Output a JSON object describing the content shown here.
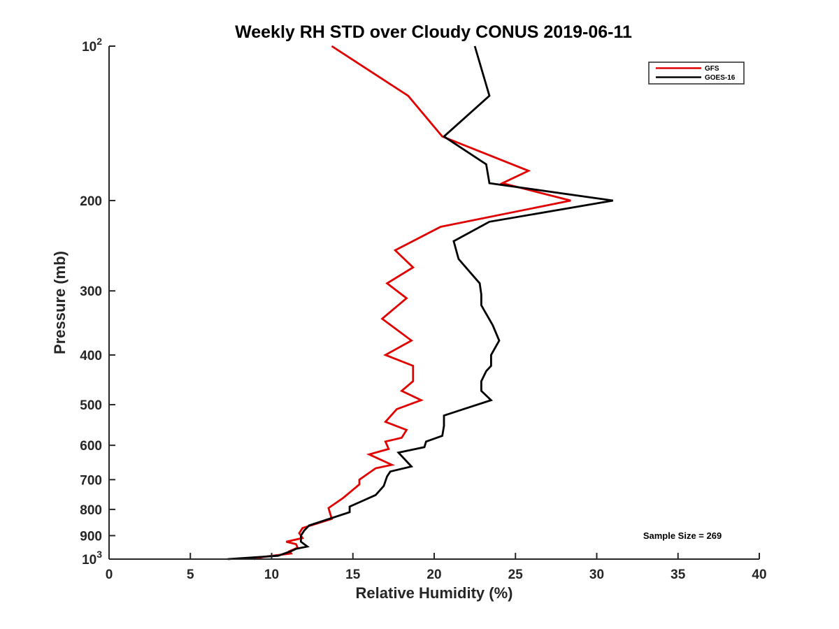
{
  "chart_data": {
    "type": "line",
    "title": "Weekly RH STD over Cloudy CONUS 2019-06-11",
    "xlabel": "Relative Humidity (%)",
    "ylabel": "Pressure (mb)",
    "xlim": [
      0,
      40
    ],
    "ylim": [
      100,
      1000
    ],
    "y_scale": "log",
    "y_reversed": true,
    "grid": false,
    "legend_position": "top-right",
    "x_ticks": [
      "0",
      "5",
      "10",
      "15",
      "20",
      "25",
      "30",
      "35",
      "40"
    ],
    "y_ticks": [
      {
        "value": 100,
        "base": "10",
        "exp": "2",
        "label": ""
      },
      {
        "value": 200,
        "label": "200"
      },
      {
        "value": 300,
        "label": "300"
      },
      {
        "value": 400,
        "label": "400"
      },
      {
        "value": 500,
        "label": "500"
      },
      {
        "value": 600,
        "label": "600"
      },
      {
        "value": 700,
        "label": "700"
      },
      {
        "value": 800,
        "label": "800"
      },
      {
        "value": 900,
        "label": "900"
      },
      {
        "value": 1000,
        "base": "10",
        "exp": "3",
        "label": ""
      }
    ],
    "series": [
      {
        "name": "GFS",
        "color": "#e00000",
        "points": [
          [
            13.7,
            100
          ],
          [
            18.4,
            125
          ],
          [
            20.5,
            150
          ],
          [
            25.8,
            175
          ],
          [
            24.2,
            185
          ],
          [
            28.4,
            200
          ],
          [
            20.4,
            225
          ],
          [
            17.6,
            250
          ],
          [
            18.7,
            270
          ],
          [
            17.1,
            290
          ],
          [
            18.3,
            310
          ],
          [
            16.8,
            340
          ],
          [
            18.6,
            375
          ],
          [
            17.0,
            400
          ],
          [
            18.7,
            420
          ],
          [
            18.7,
            450
          ],
          [
            18.0,
            470
          ],
          [
            19.2,
            490
          ],
          [
            17.7,
            510
          ],
          [
            17.0,
            540
          ],
          [
            18.3,
            560
          ],
          [
            18.0,
            580
          ],
          [
            17.0,
            590
          ],
          [
            17.2,
            610
          ],
          [
            16.0,
            625
          ],
          [
            17.4,
            655
          ],
          [
            16.4,
            665
          ],
          [
            15.4,
            700
          ],
          [
            15.4,
            715
          ],
          [
            14.4,
            760
          ],
          [
            13.5,
            795
          ],
          [
            13.6,
            815
          ],
          [
            13.7,
            835
          ],
          [
            11.9,
            870
          ],
          [
            11.7,
            890
          ],
          [
            11.9,
            910
          ],
          [
            10.9,
            925
          ],
          [
            11.5,
            935
          ],
          [
            11.6,
            950
          ],
          [
            11.1,
            965
          ],
          [
            11.2,
            975
          ],
          [
            9.5,
            990
          ],
          [
            8.9,
            1000
          ]
        ]
      },
      {
        "name": "GOES-16",
        "color": "#000000",
        "points": [
          [
            22.5,
            100
          ],
          [
            23.4,
            125
          ],
          [
            20.6,
            150
          ],
          [
            23.2,
            170
          ],
          [
            23.4,
            185
          ],
          [
            31.0,
            200
          ],
          [
            23.4,
            220
          ],
          [
            21.2,
            240
          ],
          [
            21.5,
            260
          ],
          [
            22.8,
            290
          ],
          [
            22.9,
            305
          ],
          [
            22.9,
            320
          ],
          [
            23.6,
            350
          ],
          [
            24.0,
            375
          ],
          [
            23.5,
            400
          ],
          [
            23.5,
            420
          ],
          [
            23.2,
            430
          ],
          [
            22.9,
            450
          ],
          [
            22.9,
            470
          ],
          [
            23.5,
            490
          ],
          [
            21.8,
            510
          ],
          [
            20.6,
            525
          ],
          [
            20.6,
            550
          ],
          [
            20.5,
            575
          ],
          [
            19.5,
            590
          ],
          [
            19.4,
            605
          ],
          [
            17.8,
            620
          ],
          [
            18.6,
            660
          ],
          [
            17.3,
            675
          ],
          [
            17.1,
            690
          ],
          [
            16.9,
            720
          ],
          [
            16.4,
            750
          ],
          [
            14.8,
            790
          ],
          [
            14.8,
            810
          ],
          [
            12.3,
            860
          ],
          [
            12.0,
            880
          ],
          [
            11.8,
            900
          ],
          [
            11.8,
            925
          ],
          [
            12.2,
            945
          ],
          [
            11.5,
            955
          ],
          [
            11.2,
            965
          ],
          [
            10.4,
            985
          ],
          [
            7.3,
            1000
          ]
        ]
      }
    ],
    "annotations": [
      "Sample Size = 269"
    ]
  }
}
